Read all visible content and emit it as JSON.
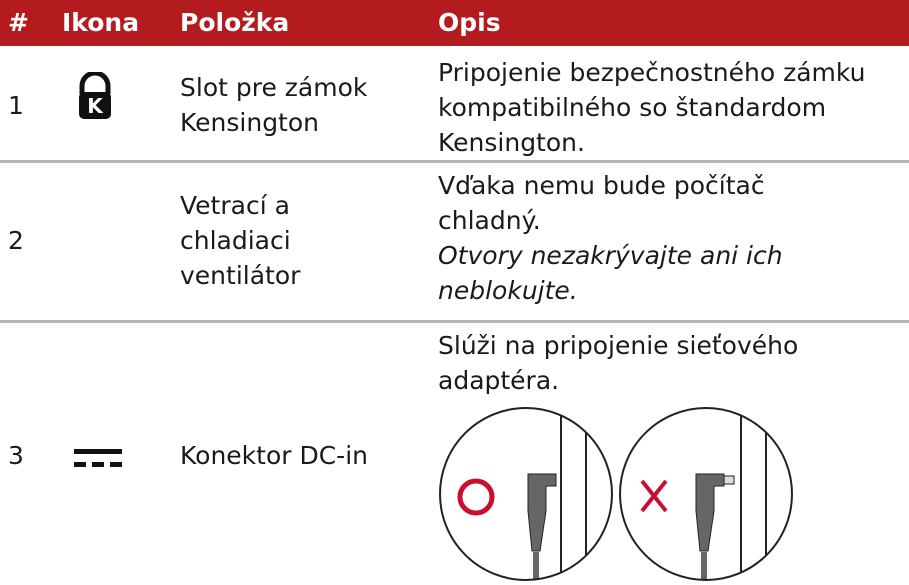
{
  "table": {
    "header": [
      "#",
      "Ikona",
      "Položka",
      "Opis"
    ],
    "rows": [
      {
        "number": "1",
        "item": [
          "Slot pre zámok",
          "Kensington"
        ],
        "description": [
          "Pripojenie bezpečnostného zámku",
          "kompatibilného so štandardom",
          "Kensington."
        ],
        "note": []
      },
      {
        "number": "2",
        "item": [
          "Vetrací a",
          "chladiaci",
          "ventilátor"
        ],
        "description": [
          "Vďaka nemu bude počítač",
          "chladný."
        ],
        "note": [
          "Otvory nezakrývajte ani ich",
          "neblokujte."
        ]
      },
      {
        "number": "3",
        "item": [
          "Konektor DC-in"
        ],
        "description": [
          "Slúži na pripojenie sieťového",
          "adaptéra."
        ],
        "note": []
      }
    ]
  }
}
